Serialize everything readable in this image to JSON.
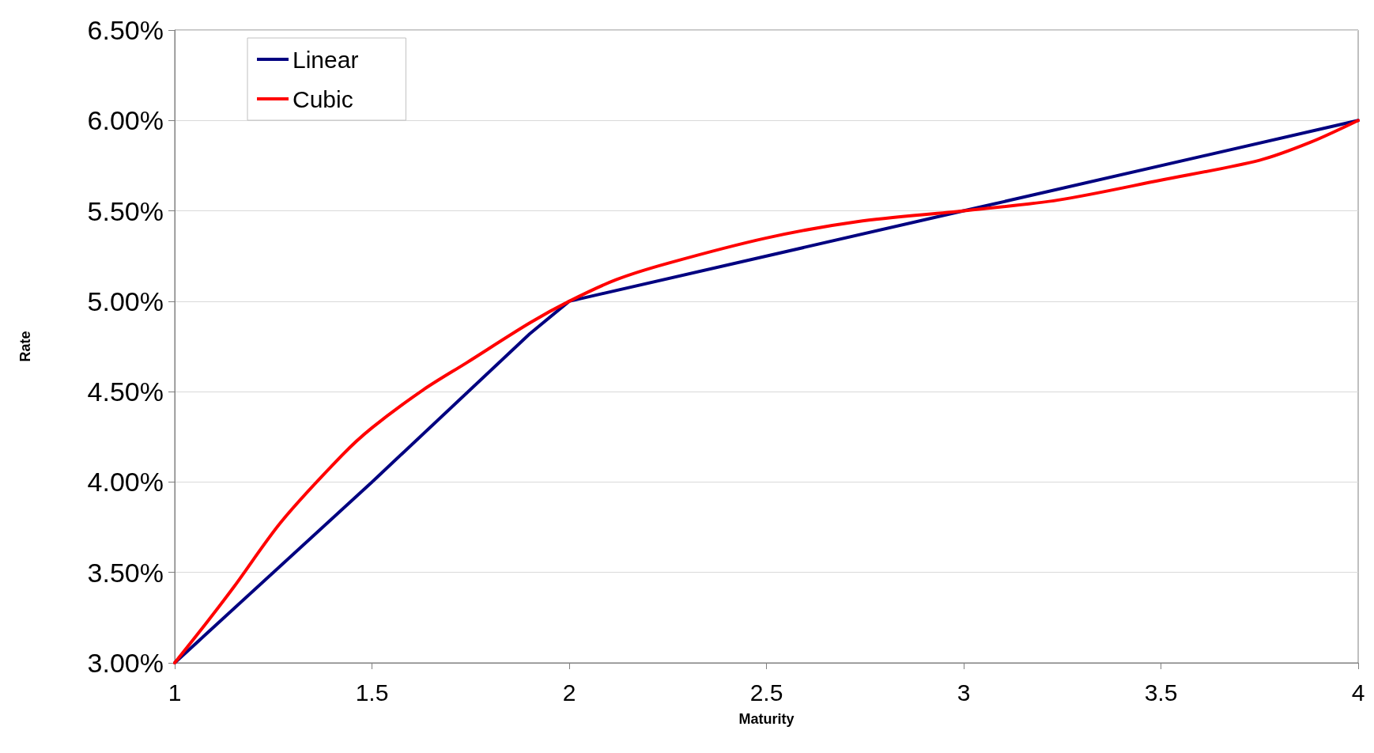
{
  "chart_data": {
    "type": "line",
    "xlabel": "Maturity",
    "ylabel": "Rate",
    "xlim": [
      1,
      4
    ],
    "xticks": [
      1,
      1.5,
      2,
      2.5,
      3,
      3.5,
      4
    ],
    "ylim": [
      3,
      6.5
    ],
    "yticks": [
      {
        "value": 3,
        "label": "3.00%"
      },
      {
        "value": 3.5,
        "label": "3.50%"
      },
      {
        "value": 4,
        "label": "4.00%"
      },
      {
        "value": 4.5,
        "label": "4.50%"
      },
      {
        "value": 5,
        "label": "5.00%"
      },
      {
        "value": 5.5,
        "label": "5.50%"
      },
      {
        "value": 6,
        "label": "6.00%"
      },
      {
        "value": 6.5,
        "label": "6.50%"
      }
    ],
    "grid": "y",
    "legend": "top left",
    "marker": "none",
    "line_style": "solid",
    "series": [
      {
        "name": "Linear",
        "color": "#000080",
        "x": [
          1,
          1.5,
          1.9,
          2,
          3,
          4
        ],
        "values": [
          3,
          4,
          4.82,
          5,
          5.5,
          6
        ]
      },
      {
        "name": "Cubic",
        "color": "#ff0000",
        "x": [
          1,
          1.08,
          1.15,
          1.27,
          1.425,
          1.5,
          1.63,
          1.74,
          1.9,
          2,
          2.12,
          2.25,
          2.5,
          2.73,
          3,
          3.24,
          3.5,
          3.75,
          3.88,
          4
        ],
        "values": [
          3,
          3.22,
          3.42,
          3.78,
          4.15,
          4.3,
          4.51,
          4.66,
          4.88,
          5,
          5.12,
          5.21,
          5.35,
          5.44,
          5.5,
          5.56,
          5.67,
          5.78,
          5.88,
          6
        ]
      }
    ]
  }
}
